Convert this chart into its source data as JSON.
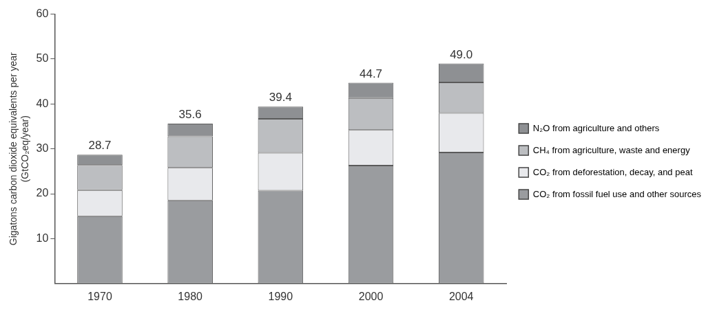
{
  "chart_data": {
    "type": "bar",
    "stacked": true,
    "ylabel": "Gigatons carbon dioxide equivalents per year\n(GtCO₂eq/year)",
    "categories": [
      "1970",
      "1980",
      "1990",
      "2000",
      "2004"
    ],
    "ylim": [
      0,
      60
    ],
    "yticks": [
      10,
      20,
      30,
      40,
      50,
      60
    ],
    "grid": false,
    "legend": "right",
    "totals": [
      "28.7",
      "35.6",
      "39.4",
      "44.7",
      "49.0"
    ],
    "series": [
      {
        "name": "CO₂ from fossil fuel use and other sources",
        "color": "#9a9c9f",
        "values": [
          15.0,
          18.5,
          20.7,
          26.3,
          29.2
        ]
      },
      {
        "name": "CO₂ from deforestation, decay, and peat",
        "color": "#e8e9ec",
        "values": [
          5.8,
          7.3,
          8.4,
          7.9,
          8.8
        ]
      },
      {
        "name": "CH₄ from agriculture, waste and energy",
        "color": "#bcbec1",
        "values": [
          5.6,
          7.0,
          7.6,
          7.1,
          6.8
        ]
      },
      {
        "name": "N₂O from agriculture and others",
        "color": "#8e9093",
        "values": [
          2.3,
          2.8,
          2.7,
          3.4,
          4.2
        ]
      }
    ]
  }
}
